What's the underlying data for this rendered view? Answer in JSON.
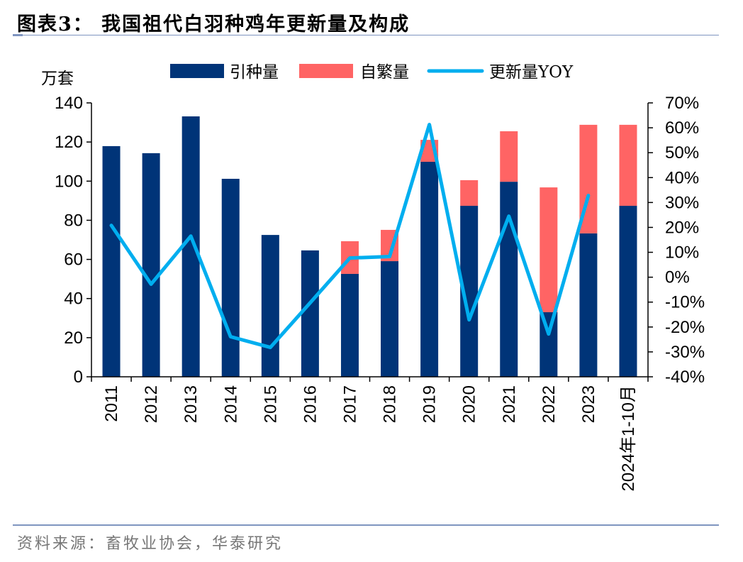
{
  "header": {
    "title": "图表3：  我国祖代白羽种鸡年更新量及构成"
  },
  "footer": {
    "source": "资料来源：畜牧业协会，华泰研究"
  },
  "colors": {
    "introduced": "#003478",
    "self_bred": "#ff6464",
    "yoy": "#00aeef",
    "axis": "#000000"
  },
  "chart_data": {
    "type": "bar",
    "stacked": true,
    "title": "我国祖代白羽种鸡年更新量及构成",
    "ylabel": "万套",
    "ylabel_right": "",
    "xlabel": "",
    "categories": [
      "2011",
      "2012",
      "2013",
      "2014",
      "2015",
      "2016",
      "2017",
      "2018",
      "2019",
      "2020",
      "2021",
      "2022",
      "2023",
      "2024年1-10月"
    ],
    "ylim": [
      0,
      140
    ],
    "yticks": [
      0,
      20,
      40,
      60,
      80,
      100,
      120,
      140
    ],
    "y2lim": [
      -40,
      70
    ],
    "y2ticks": [
      -40,
      -30,
      -20,
      -10,
      0,
      10,
      20,
      30,
      40,
      50,
      60,
      70
    ],
    "y2tick_labels": [
      "-40%",
      "-30%",
      "-20%",
      "-10%",
      "0%",
      "10%",
      "20%",
      "30%",
      "40%",
      "50%",
      "60%",
      "70%"
    ],
    "legend": {
      "placement": "top-center",
      "entries": [
        "引种量",
        "自繁量",
        "更新量YOY"
      ]
    },
    "grid": false,
    "series": [
      {
        "name": "引种量",
        "type": "bar",
        "axis": "left",
        "values": [
          117.9,
          114.3,
          133.1,
          101.2,
          72.5,
          64.6,
          52.6,
          59.1,
          109.9,
          87.4,
          99.7,
          33.0,
          73.3,
          87.4
        ]
      },
      {
        "name": "自繁量",
        "type": "bar",
        "axis": "left",
        "values": [
          0,
          0,
          0,
          0,
          0,
          0,
          16.7,
          16.0,
          11.2,
          13.1,
          25.8,
          63.8,
          55.5,
          41.4
        ]
      },
      {
        "name": "更新量YOY",
        "type": "line",
        "axis": "right",
        "unit": "%",
        "values": [
          20.8,
          -2.8,
          16.5,
          -23.9,
          -28.2,
          -10.3,
          7.7,
          8.3,
          61.3,
          -17.1,
          24.5,
          -22.8,
          32.8,
          null
        ]
      }
    ]
  }
}
